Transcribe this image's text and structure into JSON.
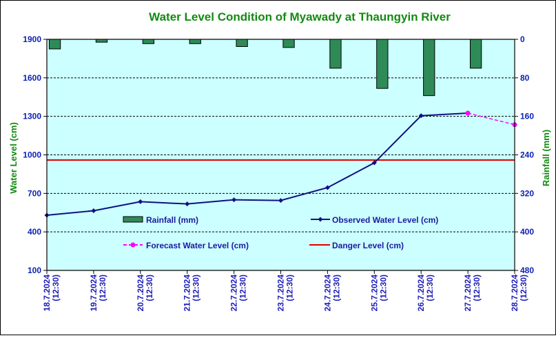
{
  "chart_data": {
    "type": "line",
    "title": "Water Level Condition of  Myawady at Thaungyin River",
    "ylabel_left": "Water Level (cm)",
    "ylabel_right": "Rainfall (mm)",
    "ylim_left": [
      100,
      1900
    ],
    "yticks_left": [
      "1900",
      "1600",
      "1300",
      "1000",
      "700",
      "400",
      "100"
    ],
    "ylim_right": [
      0,
      480
    ],
    "right_axis_inverted": true,
    "yticks_right": [
      "0",
      "80",
      "160",
      "240",
      "320",
      "400",
      "480"
    ],
    "categories": [
      {
        "date": "18.7.2024",
        "time": "(12:30)"
      },
      {
        "date": "19.7.2024",
        "time": "(12:30)"
      },
      {
        "date": "20.7.2024",
        "time": "(12:30)"
      },
      {
        "date": "21.7.2024",
        "time": "(12:30)"
      },
      {
        "date": "22.7.2024",
        "time": "(12:30)"
      },
      {
        "date": "23.7.2024",
        "time": "(12:30)"
      },
      {
        "date": "24.7.2024",
        "time": "(12:30)"
      },
      {
        "date": "25.7.2024",
        "time": "(12:30)"
      },
      {
        "date": "26.7.2024",
        "time": "(12:30)"
      },
      {
        "date": "27.7.2024",
        "time": "(12:30)"
      },
      {
        "date": "28.7.2024",
        "time": "(12:30)"
      }
    ],
    "rainfall": {
      "name": "Rainfall (mm)",
      "color": "#2e8b57",
      "values": [
        20,
        6,
        9,
        9,
        15,
        17,
        60,
        102,
        117,
        60
      ]
    },
    "observed": {
      "name": "Observed Water Level (cm)",
      "color": "#101080",
      "values": [
        530,
        565,
        635,
        618,
        650,
        645,
        745,
        938,
        1305,
        1325
      ]
    },
    "forecast": {
      "name": "Forecast Water Level (cm)",
      "color": "#ff00ff",
      "points": [
        [
          9,
          1325
        ],
        [
          10,
          1235
        ]
      ]
    },
    "danger": {
      "name": "Danger Level (cm)",
      "color": "#dd0000",
      "value": 960
    },
    "grid": true,
    "background": "#ccffff"
  }
}
